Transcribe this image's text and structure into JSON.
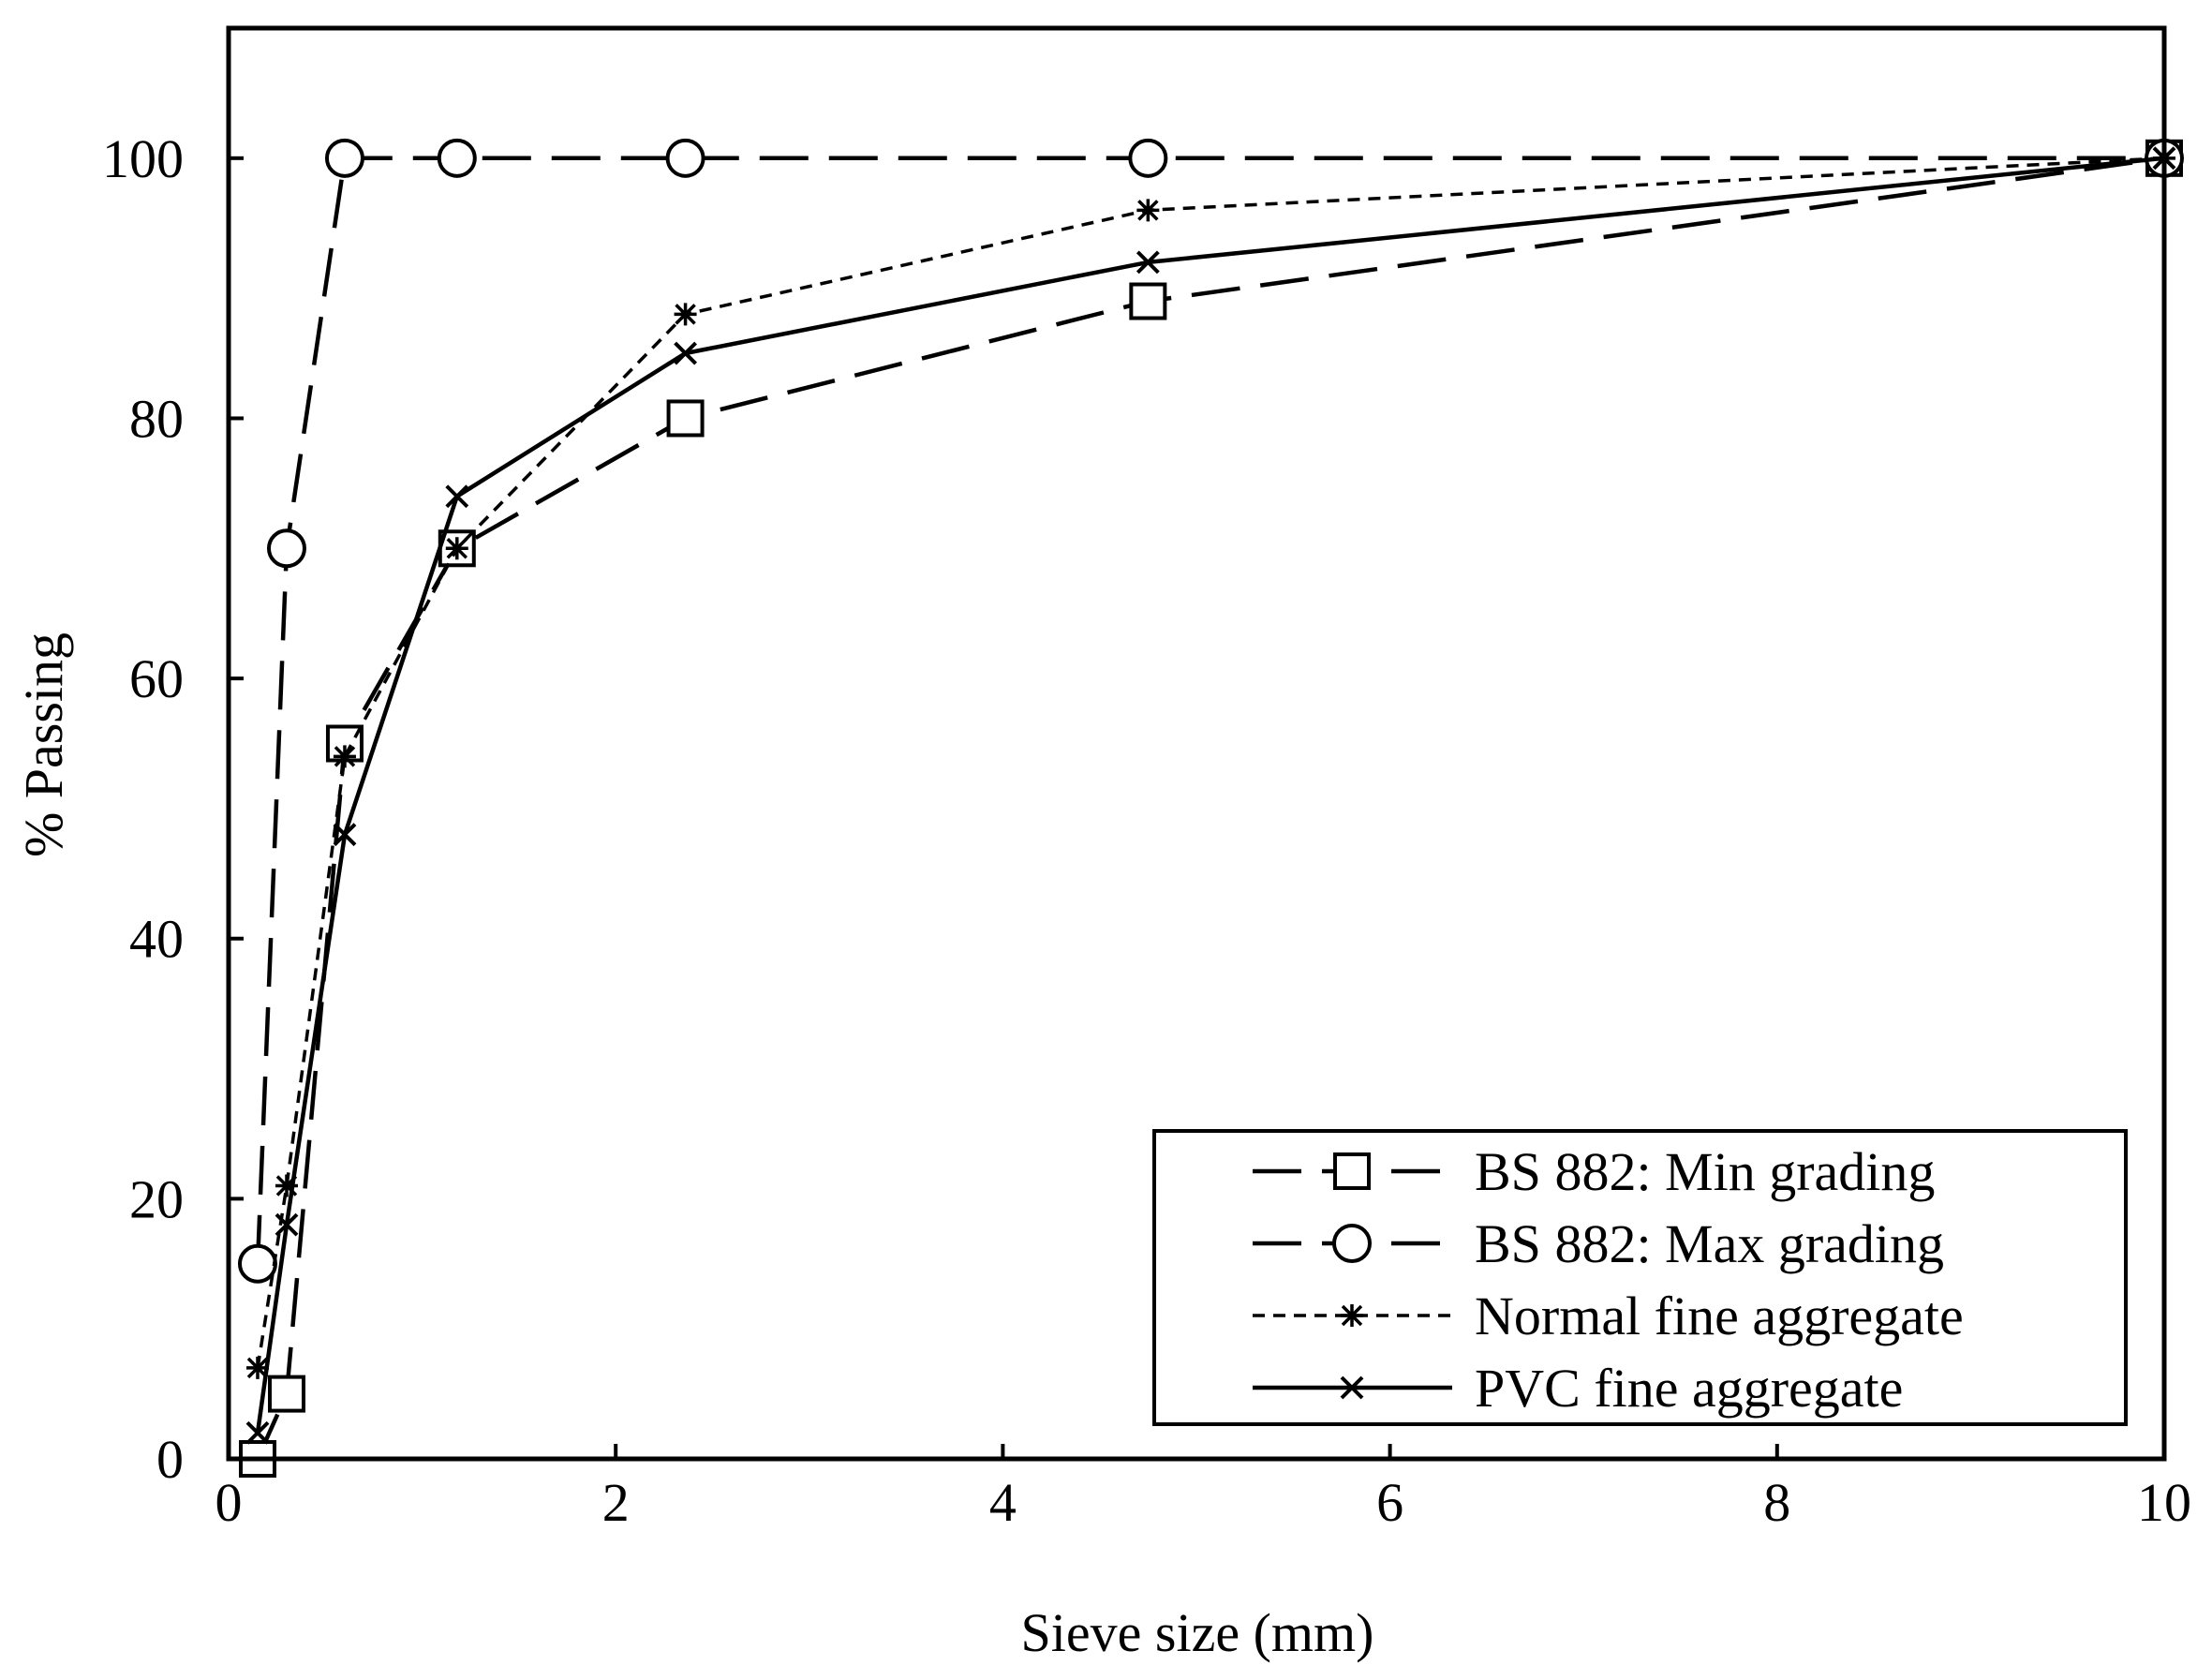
{
  "chart_data": {
    "type": "line",
    "title": "",
    "xlabel": "Sieve size (mm)",
    "ylabel": "% Passing",
    "xlim": [
      0,
      10
    ],
    "ylim": [
      0,
      110
    ],
    "xticks": [
      0,
      2,
      4,
      6,
      8,
      10
    ],
    "yticks": [
      0,
      20,
      40,
      60,
      80,
      100
    ],
    "grid": false,
    "legend_position": "bottom-right",
    "series": [
      {
        "name": "BS 882: Min grading",
        "line_style": "long-dash",
        "marker": "square",
        "x": [
          0.15,
          0.3,
          0.6,
          1.18,
          2.36,
          4.75,
          10
        ],
        "y": [
          0,
          5,
          55,
          70,
          80,
          89,
          100
        ]
      },
      {
        "name": "BS 882: Max grading",
        "line_style": "long-dash",
        "marker": "circle",
        "x": [
          0.15,
          0.3,
          0.6,
          1.18,
          2.36,
          4.75,
          10
        ],
        "y": [
          15,
          70,
          100,
          100,
          100,
          100,
          100
        ]
      },
      {
        "name": "Normal fine aggregate",
        "line_style": "short-dash",
        "marker": "asterisk",
        "x": [
          0.15,
          0.3,
          0.6,
          1.18,
          2.36,
          4.75,
          10
        ],
        "y": [
          7,
          21,
          54,
          70,
          88,
          96,
          100
        ]
      },
      {
        "name": "PVC fine aggregate",
        "line_style": "solid",
        "marker": "x",
        "x": [
          0.15,
          0.3,
          0.6,
          1.18,
          2.36,
          4.75,
          10
        ],
        "y": [
          2,
          18,
          48,
          74,
          85,
          92,
          100
        ]
      }
    ]
  }
}
